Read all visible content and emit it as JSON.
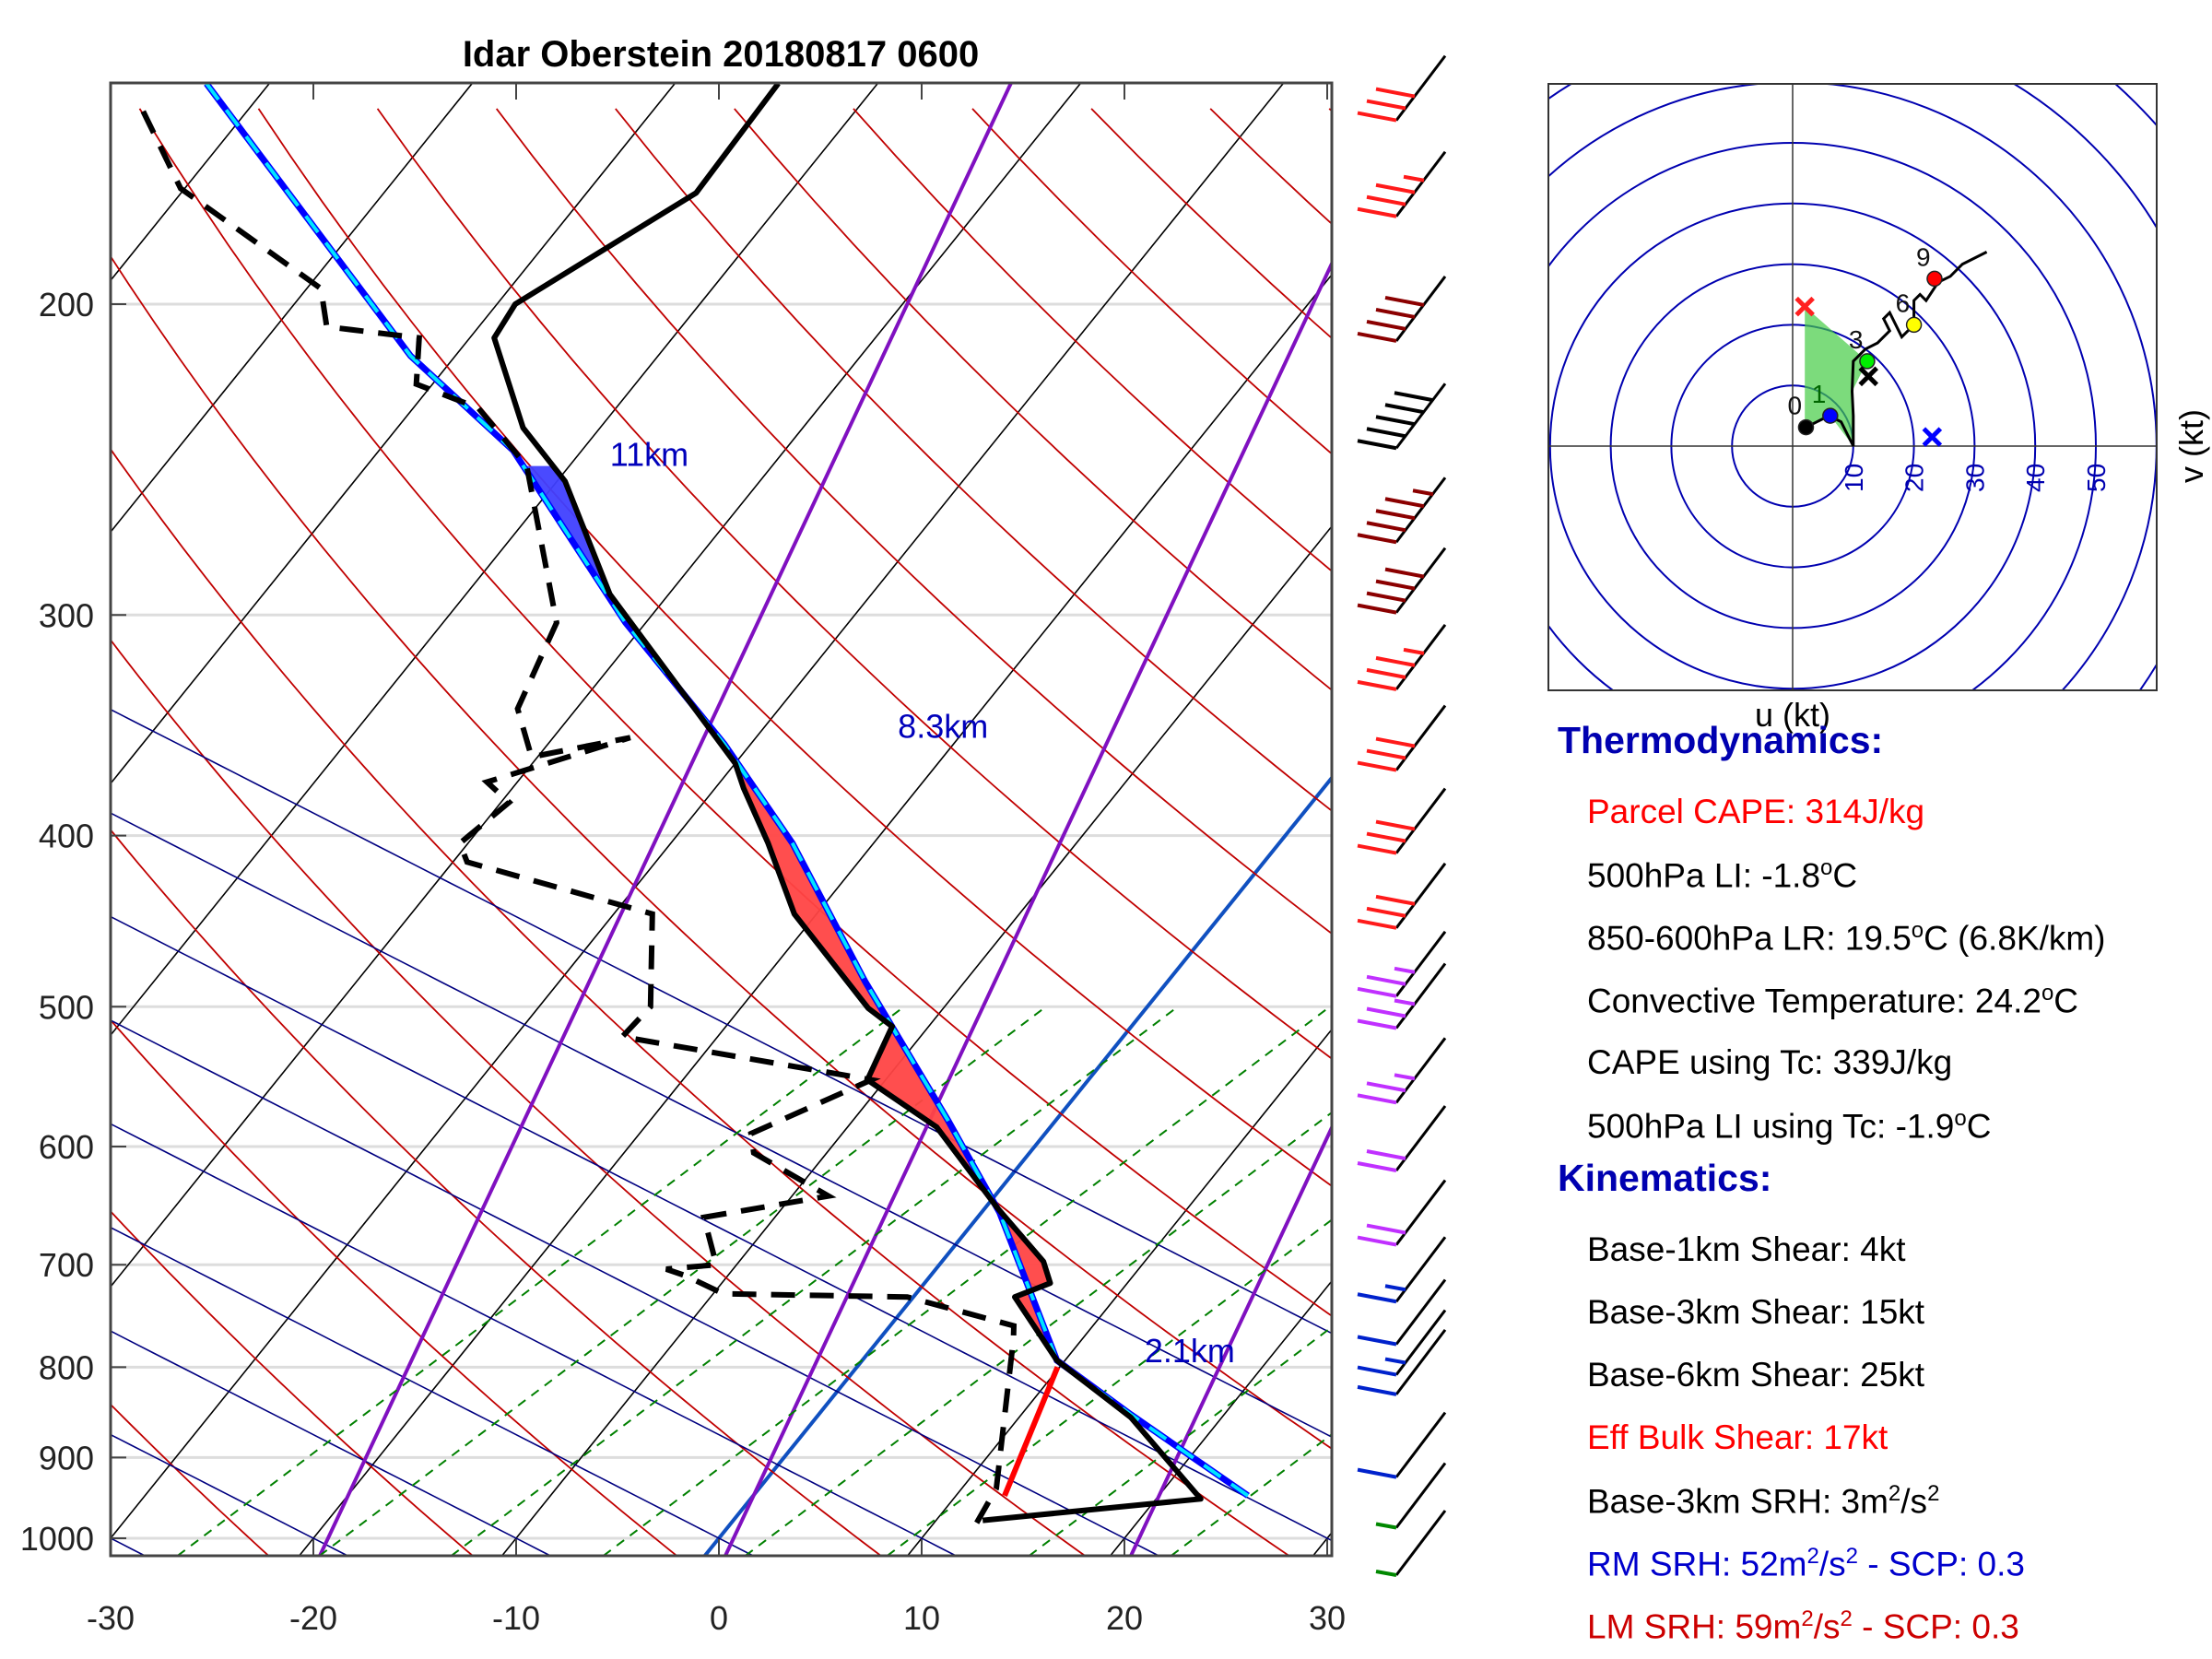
{
  "chart_data": [
    {
      "type": "line",
      "subtype": "skew-t log-p",
      "title": "Idar Oberstein 20180817 0600",
      "xlabel": "",
      "ylabel": "",
      "xlim": [
        -30,
        30
      ],
      "ylim_hpa": [
        1023,
        150
      ],
      "x_ticks": [
        -30,
        -20,
        -10,
        0,
        10,
        20,
        30
      ],
      "y_ticks": [
        200,
        300,
        400,
        500,
        600,
        700,
        800,
        900,
        1000
      ],
      "grid": true,
      "series": [
        {
          "name": "Temperature",
          "style": "solid-black",
          "points": [
            [
              977,
              12.3
            ],
            [
              950,
              22.2
            ],
            [
              854,
              15.5
            ],
            [
              793,
              9.6
            ],
            [
              730,
              5.0
            ],
            [
              717,
              6.2
            ],
            [
              697,
              5.0
            ],
            [
              650,
              0.6
            ],
            [
              585,
              -5.6
            ],
            [
              550,
              -10.9
            ],
            [
              513,
              -11.8
            ],
            [
              501,
              -13.7
            ],
            [
              443,
              -21.1
            ],
            [
              404,
              -25.2
            ],
            [
              376,
              -28.6
            ],
            [
              364,
              -30.0
            ],
            [
              292,
              -42.9
            ],
            [
              252,
              -49.6
            ],
            [
              235,
              -53.8
            ],
            [
              209,
              -58.8
            ],
            [
              200,
              -59.1
            ],
            [
              173,
              -54.6
            ],
            [
              150,
              -54.9
            ]
          ]
        },
        {
          "name": "Dewpoint",
          "style": "dashed-black",
          "points": [
            [
              980,
              12.1
            ],
            [
              937,
              11.7
            ],
            [
              771,
              6.6
            ],
            [
              758,
              6.1
            ],
            [
              730,
              -0.3
            ],
            [
              727,
              -9.5
            ],
            [
              710,
              -12.1
            ],
            [
              704,
              -13.3
            ],
            [
              700,
              -11.0
            ],
            [
              658,
              -13.5
            ],
            [
              640,
              -8.2
            ],
            [
              605,
              -13.6
            ],
            [
              590,
              -14.5
            ],
            [
              550,
              -10.7
            ],
            [
              520,
              -24.7
            ],
            [
              500,
              -24.5
            ],
            [
              443,
              -28.1
            ],
            [
              414,
              -39.3
            ],
            [
              404,
              -40.4
            ],
            [
              383,
              -39.6
            ],
            [
              373,
              -41.5
            ],
            [
              352,
              -36.2
            ],
            [
              361,
              -40.3
            ],
            [
              339,
              -42.9
            ],
            [
              303,
              -44.4
            ],
            [
              247,
              -52.1
            ],
            [
              229,
              -56.8
            ],
            [
              222,
              -60.8
            ],
            [
              209,
              -62.5
            ],
            [
              206,
              -67.5
            ],
            [
              196,
              -69.3
            ],
            [
              172,
              -80.2
            ],
            [
              154,
              -85.6
            ]
          ]
        },
        {
          "name": "Parcel",
          "style": "blue-cyan-dashed",
          "points": [
            [
              946,
              24.4
            ],
            [
              851,
              15.4
            ],
            [
              793,
              9.6
            ],
            [
              654,
              0.9
            ],
            [
              580,
              -5.3
            ],
            [
              484,
              -14.9
            ],
            [
              404,
              -24.0
            ],
            [
              355,
              -31.3
            ],
            [
              303,
              -41.0
            ],
            [
              242,
              -53.4
            ],
            [
              214,
              -62.2
            ],
            [
              150,
              -83.1
            ]
          ]
        },
        {
          "name": "Lifted parcel lower segment",
          "style": "solid-red",
          "points": [
            [
              946,
              12.4
            ],
            [
              800,
              9.9
            ]
          ]
        }
      ],
      "shaded_areas": [
        {
          "name": "CAPE",
          "color": "#ff4444",
          "p_range": [
            793,
            360
          ]
        },
        {
          "name": "negative area (upper)",
          "color": "#4040ff",
          "p_range": [
            292,
            247
          ]
        }
      ],
      "annotations": [
        {
          "text": "11km",
          "p": 247,
          "T": -48
        },
        {
          "text": "8.3km",
          "p": 352,
          "T": -23
        },
        {
          "text": "2.1km",
          "p": 795,
          "T": 14
        }
      ],
      "wind_barbs": [
        {
          "p": 150,
          "color": "red",
          "knots": 30
        },
        {
          "p": 170,
          "color": "red",
          "knots": 35
        },
        {
          "p": 200,
          "color": "darkred",
          "knots": 40
        },
        {
          "p": 230,
          "color": "black",
          "knots": 50
        },
        {
          "p": 260,
          "color": "darkred",
          "knots": 45
        },
        {
          "p": 285,
          "color": "darkred",
          "knots": 40
        },
        {
          "p": 315,
          "color": "red",
          "knots": 35
        },
        {
          "p": 350,
          "color": "red",
          "knots": 30
        },
        {
          "p": 390,
          "color": "red",
          "knots": 30
        },
        {
          "p": 430,
          "color": "red",
          "knots": 30
        },
        {
          "p": 470,
          "color": "purple",
          "knots": 25
        },
        {
          "p": 490,
          "color": "purple",
          "knots": 25
        },
        {
          "p": 540,
          "color": "purple",
          "knots": 25
        },
        {
          "p": 590,
          "color": "purple",
          "knots": 20
        },
        {
          "p": 650,
          "color": "purple",
          "knots": 20
        },
        {
          "p": 700,
          "color": "blue",
          "knots": 15
        },
        {
          "p": 740,
          "color": "blue",
          "knots": 10
        },
        {
          "p": 770,
          "color": "blue",
          "knots": 15
        },
        {
          "p": 790,
          "color": "blue",
          "knots": 10
        },
        {
          "p": 880,
          "color": "blue",
          "knots": 10
        },
        {
          "p": 940,
          "color": "green",
          "knots": 5
        },
        {
          "p": 1000,
          "color": "green",
          "knots": 5
        }
      ]
    },
    {
      "type": "line",
      "subtype": "hodograph",
      "xlabel": "u (kt)",
      "ylabel": "v (kt)",
      "ring_labels": [
        10,
        20,
        30,
        40,
        50
      ],
      "xlim": [
        -40,
        60
      ],
      "ylim": [
        -40,
        60
      ],
      "height_labels": [
        "0",
        "1",
        "3",
        "6",
        "9"
      ],
      "trace": [
        [
          2,
          3
        ],
        [
          4,
          4
        ],
        [
          6,
          5
        ],
        [
          8,
          4
        ],
        [
          10,
          0
        ],
        [
          10,
          5
        ],
        [
          9.8,
          9
        ],
        [
          10,
          14
        ],
        [
          12,
          16
        ],
        [
          14,
          17
        ],
        [
          16,
          19
        ],
        [
          15,
          21
        ],
        [
          16,
          22
        ],
        [
          18,
          18
        ],
        [
          20,
          20
        ],
        [
          20,
          24
        ],
        [
          21,
          25
        ],
        [
          22,
          24
        ],
        [
          24,
          27
        ],
        [
          26,
          28
        ],
        [
          28,
          30
        ],
        [
          30,
          31
        ],
        [
          32,
          32
        ]
      ],
      "markers": [
        {
          "label": "0 km",
          "u": 2.2,
          "v": 3.1,
          "color": "black"
        },
        {
          "label": "1 km",
          "u": 6.2,
          "v": 5.0,
          "color": "blue"
        },
        {
          "label": "3 km",
          "u": 12.3,
          "v": 14.0,
          "color": "lime"
        },
        {
          "label": "6 km",
          "u": 20.0,
          "v": 20.0,
          "color": "yellow"
        },
        {
          "label": "9 km",
          "u": 23.4,
          "v": 27.6,
          "color": "red"
        }
      ],
      "storm_motion": [
        {
          "name": "LM",
          "u": 2.0,
          "v": 23.0,
          "color": "red",
          "symbol": "x"
        },
        {
          "name": "RM",
          "u": 23.0,
          "v": 1.5,
          "color": "blue",
          "symbol": "x"
        },
        {
          "name": "mean",
          "u": 12.5,
          "v": 11.5,
          "color": "black",
          "symbol": "x"
        }
      ]
    }
  ],
  "panel": {
    "thermo_title": "Thermodynamics:",
    "thermo": [
      {
        "text": "Parcel CAPE: 314J/kg",
        "color": "#ff0000"
      },
      {
        "pre": "500hPa LI: -1.8",
        "sup": "o",
        "post": "C",
        "color": "#000000"
      },
      {
        "pre": "850-600hPa LR: 19.5",
        "sup": "o",
        "post": "C (6.8K/km)",
        "color": "#000000"
      },
      {
        "pre": "Convective Temperature: 24.2",
        "sup": "o",
        "post": "C",
        "color": "#000000"
      },
      {
        "text": "CAPE using Tc: 339J/kg",
        "color": "#000000"
      },
      {
        "pre": "500hPa LI using Tc: -1.9",
        "sup": "o",
        "post": "C",
        "color": "#000000"
      }
    ],
    "kin_title": "Kinematics:",
    "kin": [
      {
        "text": "Base-1km Shear: 4kt",
        "color": "#000000"
      },
      {
        "text": "Base-3km Shear: 15kt",
        "color": "#000000"
      },
      {
        "text": "Base-6km Shear: 25kt",
        "color": "#000000"
      },
      {
        "text": "Eff Bulk Shear: 17kt",
        "color": "#ff0000"
      },
      {
        "pre": "Base-3km SRH: 3m",
        "sup": "2",
        "mid": "/s",
        "sup2": "2",
        "post": "",
        "color": "#000000"
      },
      {
        "pre": "RM SRH: 52m",
        "sup": "2",
        "mid": "/s",
        "sup2": "2",
        "post": " - SCP: 0.3",
        "color": "#0000cc"
      },
      {
        "pre": "LM SRH: 59m",
        "sup": "2",
        "mid": "/s",
        "sup2": "2",
        "post": " - SCP: 0.3",
        "color": "#cc0000"
      }
    ]
  }
}
